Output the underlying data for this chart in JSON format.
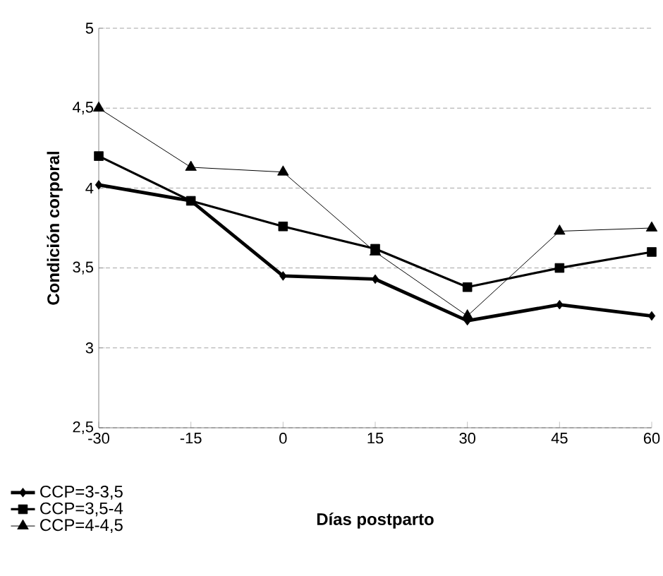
{
  "chart_data": {
    "type": "line",
    "xlabel": "Días postparto",
    "ylabel": "Condición corporal",
    "x": [
      -30,
      -15,
      0,
      15,
      30,
      45,
      60
    ],
    "xlim": [
      -30,
      60
    ],
    "xticks": [
      -30,
      -15,
      0,
      15,
      30,
      45,
      60
    ],
    "ylim": [
      2.5,
      5
    ],
    "yticks": [
      {
        "value": 2.5,
        "label": "2,5"
      },
      {
        "value": 3,
        "label": "3"
      },
      {
        "value": 3.5,
        "label": "3,5"
      },
      {
        "value": 4,
        "label": "4"
      },
      {
        "value": 4.5,
        "label": "4,5"
      },
      {
        "value": 5,
        "label": "5"
      }
    ],
    "grid": "y",
    "legend": "bottom left",
    "line_style": "solid",
    "series": [
      {
        "name": "CCP=3-3,5",
        "color": "#000000",
        "marker": "diamond",
        "values": [
          4.02,
          3.92,
          3.45,
          3.43,
          3.17,
          3.27,
          3.2
        ]
      },
      {
        "name": "CCP=3,5-4",
        "color": "#000000",
        "marker": "square",
        "values": [
          4.2,
          3.92,
          3.76,
          3.62,
          3.38,
          3.5,
          3.6
        ]
      },
      {
        "name": "CCP=4-4,5",
        "color": "#000000",
        "marker": "triangle",
        "values": [
          4.5,
          4.13,
          4.1,
          3.6,
          3.2,
          3.73,
          3.75
        ]
      }
    ]
  }
}
